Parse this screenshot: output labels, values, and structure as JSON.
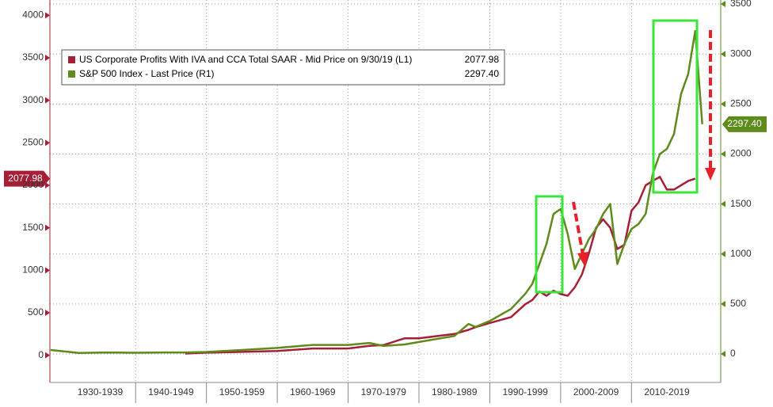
{
  "chart_data": {
    "type": "line",
    "x": [
      1928,
      1932,
      1936,
      1940,
      1944,
      1947,
      1950,
      1955,
      1960,
      1965,
      1970,
      1973,
      1975,
      1978,
      1980,
      1985,
      1987,
      1988,
      1990,
      1993,
      1995,
      1996,
      1997,
      1998,
      1999,
      2000,
      2001,
      2002,
      2003,
      2004,
      2005,
      2006,
      2007,
      2008,
      2009,
      2010,
      2011,
      2012,
      2013,
      2014,
      2015,
      2016,
      2017,
      2018,
      2019,
      2020
    ],
    "series": [
      {
        "name": "US Corporate Profits With IVA and CCA Total SAAR - Mid Price on 9/30/19 (L1)",
        "color": "#a51f36",
        "axis": "y",
        "values": [
          null,
          null,
          null,
          null,
          null,
          20,
          30,
          40,
          50,
          80,
          80,
          110,
          120,
          200,
          200,
          250,
          300,
          330,
          380,
          450,
          600,
          650,
          750,
          700,
          760,
          720,
          700,
          800,
          950,
          1200,
          1500,
          1600,
          1500,
          1250,
          1300,
          1700,
          1800,
          2000,
          2050,
          2100,
          1950,
          1950,
          2000,
          2050,
          2077.98,
          null
        ],
        "value_labels": [
          null,
          null,
          null,
          null,
          null,
          null,
          null,
          null,
          null,
          null,
          null,
          null,
          null,
          null,
          null,
          null,
          null,
          null,
          null,
          null,
          null,
          null,
          null,
          null,
          null,
          null,
          null,
          null,
          null,
          null,
          null,
          null,
          null,
          null,
          null,
          null,
          null,
          null,
          null,
          null,
          null,
          null,
          null,
          null,
          "2077.98",
          null
        ]
      },
      {
        "name": "S&P 500 Index - Last Price (R1)",
        "color": "#5f8a1c",
        "axis": "y2",
        "values": [
          40,
          10,
          15,
          12,
          15,
          15,
          20,
          40,
          60,
          90,
          90,
          110,
          80,
          95,
          120,
          180,
          300,
          270,
          330,
          450,
          600,
          700,
          900,
          1100,
          1400,
          1450,
          1200,
          850,
          1000,
          1150,
          1250,
          1400,
          1500,
          900,
          1100,
          1250,
          1300,
          1400,
          1800,
          2000,
          2050,
          2200,
          2600,
          2800,
          3230,
          2297.4
        ],
        "value_labels": [
          null,
          null,
          null,
          null,
          null,
          null,
          null,
          null,
          null,
          null,
          null,
          null,
          null,
          null,
          null,
          null,
          null,
          null,
          null,
          null,
          null,
          null,
          null,
          null,
          null,
          null,
          null,
          null,
          null,
          null,
          null,
          null,
          null,
          null,
          null,
          null,
          null,
          null,
          null,
          null,
          null,
          null,
          null,
          null,
          null,
          "2297.40"
        ]
      }
    ],
    "xlim": [
      1927.9,
      2022.6
    ],
    "xticks": [
      {
        "value": 1935,
        "label": "1930-1939"
      },
      {
        "value": 1945,
        "label": "1940-1949"
      },
      {
        "value": 1955,
        "label": "1950-1959"
      },
      {
        "value": 1965,
        "label": "1960-1969"
      },
      {
        "value": 1975,
        "label": "1970-1979"
      },
      {
        "value": 1985,
        "label": "1980-1989"
      },
      {
        "value": 1995,
        "label": "1990-1999"
      },
      {
        "value": 2005,
        "label": "2000-2009"
      },
      {
        "value": 2015,
        "label": "2010-2019"
      }
    ],
    "ylim": [
      -320,
      4180
    ],
    "yticks": [
      0,
      500,
      1000,
      1500,
      2000,
      2500,
      3000,
      3500,
      4000
    ],
    "y2lim": [
      -285,
      3540
    ],
    "y2ticks": [
      0,
      500,
      1000,
      1500,
      2000,
      2500,
      3000,
      3500
    ],
    "grid": true
  }
}
